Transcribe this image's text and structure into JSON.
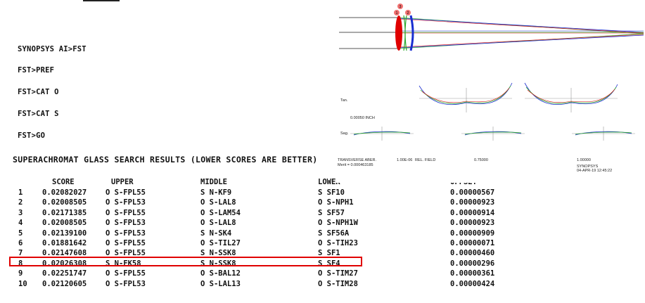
{
  "terminal": {
    "commands": [
      "SYNOPSYS AI>FST",
      "FST>PREF",
      "FST>CAT O",
      "FST>CAT S",
      "FST>GO"
    ],
    "heading": "SUPERACHROMAT GLASS SEARCH RESULTS (LOWER SCORES ARE BETTER)"
  },
  "table": {
    "headers": [
      "SCORE",
      "UPPER",
      "MIDDLE",
      "LOWER",
      "OFFSET"
    ],
    "rows": [
      {
        "n": "1",
        "score": "0.02082027",
        "upper": "O S-FPL55",
        "middle": "S N-KF9",
        "lower": "S SF10",
        "offset": "0.00000567"
      },
      {
        "n": "2",
        "score": "0.02008505",
        "upper": "O S-FPL53",
        "middle": "O S-LAL8",
        "lower": "O S-NPH1",
        "offset": "0.00000923"
      },
      {
        "n": "3",
        "score": "0.02171385",
        "upper": "O S-FPL55",
        "middle": "O S-LAM54",
        "lower": "S SF57",
        "offset": "0.00000914"
      },
      {
        "n": "4",
        "score": "0.02008505",
        "upper": "O S-FPL53",
        "middle": "O S-LAL8",
        "lower": "O S-NPH1W",
        "offset": "0.00000923"
      },
      {
        "n": "5",
        "score": "0.02139100",
        "upper": "O S-FPL53",
        "middle": "S N-SK4",
        "lower": "S SF56A",
        "offset": "0.00000909"
      },
      {
        "n": "6",
        "score": "0.01881642",
        "upper": "O S-FPL55",
        "middle": "O S-TIL27",
        "lower": "O S-TIH23",
        "offset": "0.00000071"
      },
      {
        "n": "7",
        "score": "0.02147608",
        "upper": "O S-FPL55",
        "middle": "S N-SSK8",
        "lower": "S SF1",
        "offset": "0.00000460"
      },
      {
        "n": "8",
        "score": "0.02026308",
        "upper": "S N-FK58",
        "middle": "S N-SSK8",
        "lower": "S SF4",
        "offset": "0.00000296"
      },
      {
        "n": "9",
        "score": "0.02251747",
        "upper": "O S-FPL55",
        "middle": "O S-BAL12",
        "lower": "O S-TIM27",
        "offset": "0.00000361"
      },
      {
        "n": "10",
        "score": "0.02120605",
        "upper": "O S-FPL53",
        "middle": "O S-LAL13",
        "lower": "O S-TIM28",
        "offset": "0.00000424"
      }
    ],
    "highlighted_row": "7",
    "highlight_color": "#e00000"
  },
  "plot": {
    "element_labels": [
      "3",
      "1",
      "2"
    ],
    "tan_label": "Tan.",
    "sag_label": "Sag.",
    "scale_label": "0.00050  INCH",
    "footer_left": "TRANSVERSE ABER.",
    "footer_merit": "Merit = 0.000463185",
    "footer_value": "1.00E-06",
    "rel_field_label": "REL. FIELD",
    "field_mid": "0.75000",
    "field_full": "1.00000",
    "program": "SYNOPSYS",
    "date": "04-APR-19  12:45:22",
    "colors": {
      "ray_green": "#2fa82f",
      "ray_blue": "#1d2fd0",
      "ray_red": "#e01010",
      "lens_red": "#e00000",
      "lens_blue": "#1a2ed0"
    }
  }
}
